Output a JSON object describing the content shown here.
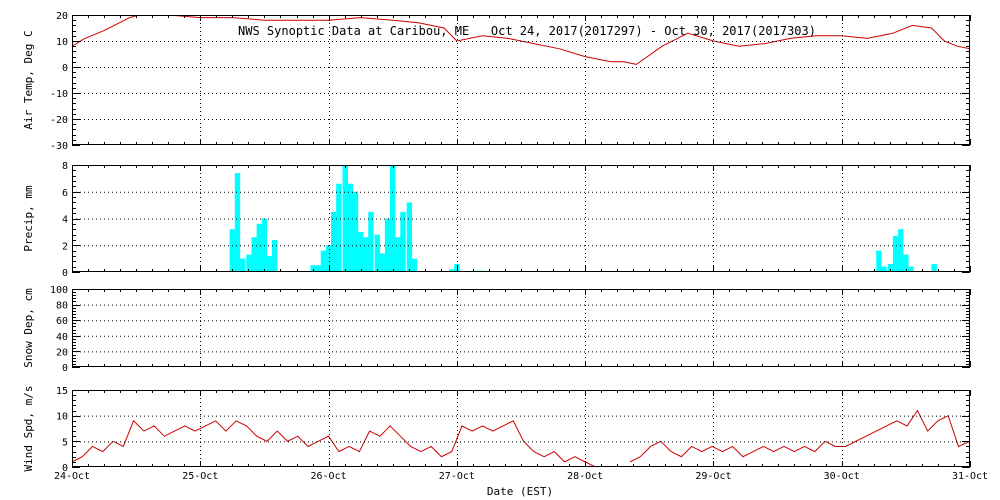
{
  "title": "NWS Synoptic Data at Caribou, ME   Oct 24, 2017(2017297) - Oct 30, 2017(2017303)",
  "xlabel": "Date (EST)",
  "x_tick_labels": [
    "24-Oct",
    "25-Oct",
    "26-Oct",
    "27-Oct",
    "28-Oct",
    "29-Oct",
    "30-Oct",
    "31-Oct"
  ],
  "colors": {
    "temp": "#cc0000",
    "precip": "#00ffff",
    "wind": "#cc0000",
    "grid": "#000000"
  },
  "chart_data": [
    {
      "type": "line",
      "ylabel": "Air Temp, Deg C",
      "ylim": [
        -30,
        20
      ],
      "yticks": [
        -30,
        -20,
        -10,
        0,
        10,
        20
      ],
      "grid": true,
      "x_unit": "days since 24-Oct 00:00",
      "series": [
        {
          "x": [
            0,
            0.1,
            0.25,
            0.45,
            0.6,
            0.75,
            1.0,
            1.25,
            1.5,
            1.75,
            2.0,
            2.25,
            2.5,
            2.7,
            2.9,
            3.0,
            3.2,
            3.4,
            3.6,
            3.8,
            4.0,
            4.2,
            4.3,
            4.4,
            4.6,
            4.8,
            5.0,
            5.2,
            5.4,
            5.6,
            5.8,
            6.0,
            6.2,
            6.4,
            6.55,
            6.7,
            6.8,
            6.9,
            7.0
          ],
          "y": [
            8,
            11,
            14,
            19,
            21,
            20,
            19,
            19,
            18,
            18,
            18,
            19,
            18,
            17,
            15,
            10,
            12,
            11,
            9,
            7,
            4,
            2,
            2,
            1,
            8,
            13,
            10,
            8,
            9,
            11,
            12,
            12,
            11,
            13,
            16,
            15,
            10,
            8,
            7
          ]
        }
      ]
    },
    {
      "type": "bar",
      "ylabel": "Precip, mm",
      "ylim": [
        0,
        8
      ],
      "yticks": [
        0,
        2,
        4,
        6,
        8
      ],
      "grid": true,
      "x_unit": "days since 24-Oct 00:00",
      "bar_width_days": 0.042,
      "series": [
        {
          "x": [
            1.25,
            1.29,
            1.33,
            1.38,
            1.42,
            1.46,
            1.5,
            1.54,
            1.58,
            1.88,
            1.92,
            1.96,
            2.0,
            2.04,
            2.08,
            2.13,
            2.17,
            2.21,
            2.25,
            2.29,
            2.33,
            2.38,
            2.42,
            2.46,
            2.5,
            2.54,
            2.58,
            2.63,
            2.67,
            2.96,
            3.0,
            3.17,
            3.21,
            6.25,
            6.29,
            6.33,
            6.38,
            6.42,
            6.46,
            6.5,
            6.54,
            6.58,
            6.72
          ],
          "y": [
            3.2,
            7.4,
            1.0,
            1.3,
            2.6,
            3.6,
            4.0,
            1.2,
            2.4,
            0.5,
            0.5,
            1.6,
            2.0,
            4.5,
            6.6,
            8.0,
            6.6,
            6.0,
            3.0,
            2.6,
            4.5,
            2.8,
            1.4,
            4.0,
            8.0,
            2.6,
            4.5,
            5.2,
            1.0,
            0.2,
            0.6,
            0.1,
            0.1,
            0.1,
            1.6,
            0.4,
            0.6,
            2.7,
            3.2,
            1.3,
            0.4,
            0.0,
            0.6
          ]
        }
      ]
    },
    {
      "type": "line",
      "ylabel": "Snow Dep, cm",
      "ylim": [
        0,
        100
      ],
      "yticks": [
        0,
        20,
        40,
        60,
        80,
        100
      ],
      "grid": true,
      "series": []
    },
    {
      "type": "line",
      "ylabel": "Wind Spd, m/s",
      "ylim": [
        0,
        15
      ],
      "yticks": [
        0,
        5,
        10,
        15
      ],
      "grid": true,
      "x_unit": "days since 24-Oct 00:00",
      "series": [
        {
          "x": [
            0,
            0.08,
            0.16,
            0.24,
            0.32,
            0.4,
            0.48,
            0.56,
            0.64,
            0.72,
            0.8,
            0.88,
            0.96,
            1.04,
            1.12,
            1.2,
            1.28,
            1.36,
            1.44,
            1.52,
            1.6,
            1.68,
            1.76,
            1.84,
            1.92,
            2.0,
            2.08,
            2.16,
            2.24,
            2.32,
            2.4,
            2.48,
            2.56,
            2.64,
            2.72,
            2.8,
            2.88,
            2.96,
            3.04,
            3.12,
            3.2,
            3.28,
            3.36,
            3.44,
            3.52,
            3.6,
            3.68,
            3.76,
            3.84,
            3.92,
            4.0,
            4.08,
            null,
            4.35,
            4.43,
            4.51,
            4.59,
            4.67,
            4.75,
            4.83,
            4.91,
            4.99,
            5.07,
            5.15,
            5.23,
            5.31,
            5.39,
            5.47,
            5.55,
            5.63,
            5.71,
            5.79,
            5.87,
            5.95,
            6.03,
            6.11,
            6.19,
            6.27,
            6.35,
            6.43,
            6.51,
            6.59,
            6.67,
            6.75,
            6.83,
            6.91,
            7.0
          ],
          "y": [
            1,
            2,
            4,
            3,
            5,
            4,
            9,
            7,
            8,
            6,
            7,
            8,
            7,
            8,
            9,
            7,
            9,
            8,
            6,
            5,
            7,
            5,
            6,
            4,
            5,
            6,
            3,
            4,
            3,
            7,
            6,
            8,
            6,
            4,
            3,
            4,
            2,
            3,
            8,
            7,
            8,
            7,
            8,
            9,
            5,
            3,
            2,
            3,
            1,
            2,
            1,
            0,
            null,
            1,
            2,
            4,
            5,
            3,
            2,
            4,
            3,
            4,
            3,
            4,
            2,
            3,
            4,
            3,
            4,
            3,
            4,
            3,
            5,
            4,
            4,
            5,
            6,
            7,
            8,
            9,
            8,
            11,
            7,
            9,
            10,
            4,
            5
          ]
        }
      ]
    }
  ]
}
